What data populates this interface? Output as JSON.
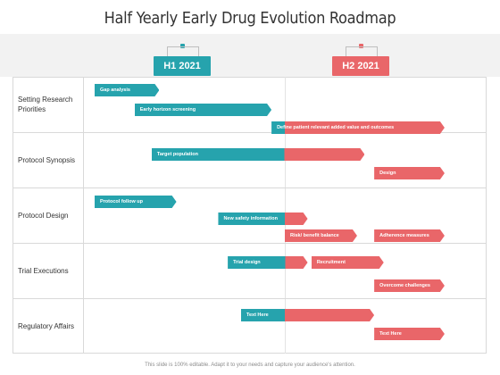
{
  "title": "Half Yearly Early Drug Evolution Roadmap",
  "colors": {
    "h1": "#26a3ad",
    "h2": "#e96669"
  },
  "periods": [
    {
      "label": "H1 2021"
    },
    {
      "label": "H2 2021"
    }
  ],
  "categories": [
    {
      "label": "Setting Research Priorities"
    },
    {
      "label": "Protocol Synopsis"
    },
    {
      "label": "Protocol Design"
    },
    {
      "label": "Trial Executions"
    },
    {
      "label": "Regulatory Affairs"
    }
  ],
  "tasks": [
    {
      "row": 0,
      "label": "Gap analysis",
      "start": 0.0,
      "end": 0.34
    },
    {
      "row": 0,
      "label": "Early horizon screening",
      "start": 0.21,
      "end": 0.93
    },
    {
      "row": 0,
      "label": "Define patient relevant added value and outcomes",
      "start": 0.93,
      "end": 1.84
    },
    {
      "row": 1,
      "label": "Target population",
      "start": 0.3,
      "end": 1.42
    },
    {
      "row": 1,
      "label": "Design",
      "start": 1.47,
      "end": 1.84
    },
    {
      "row": 2,
      "label": "Protocol follow up",
      "start": 0.0,
      "end": 0.43
    },
    {
      "row": 2,
      "label": "New safety information",
      "start": 0.65,
      "end": 1.12
    },
    {
      "row": 2,
      "label": "Risk/ benefit balance",
      "start": 1.0,
      "end": 1.38
    },
    {
      "row": 2,
      "label": "Adherence measures",
      "start": 1.47,
      "end": 1.84
    },
    {
      "row": 3,
      "label": "Trial design",
      "start": 0.7,
      "end": 1.12
    },
    {
      "row": 3,
      "label": "Recruitment",
      "start": 1.14,
      "end": 1.52
    },
    {
      "row": 3,
      "label": "Overcome challenges",
      "start": 1.47,
      "end": 1.84
    },
    {
      "row": 4,
      "label": "Text Here",
      "start": 0.77,
      "end": 1.47
    },
    {
      "row": 4,
      "label": "Text Here",
      "start": 1.47,
      "end": 1.84
    }
  ],
  "footer": "This slide is 100% editable. Adapt it to your needs and capture your audience's attention."
}
